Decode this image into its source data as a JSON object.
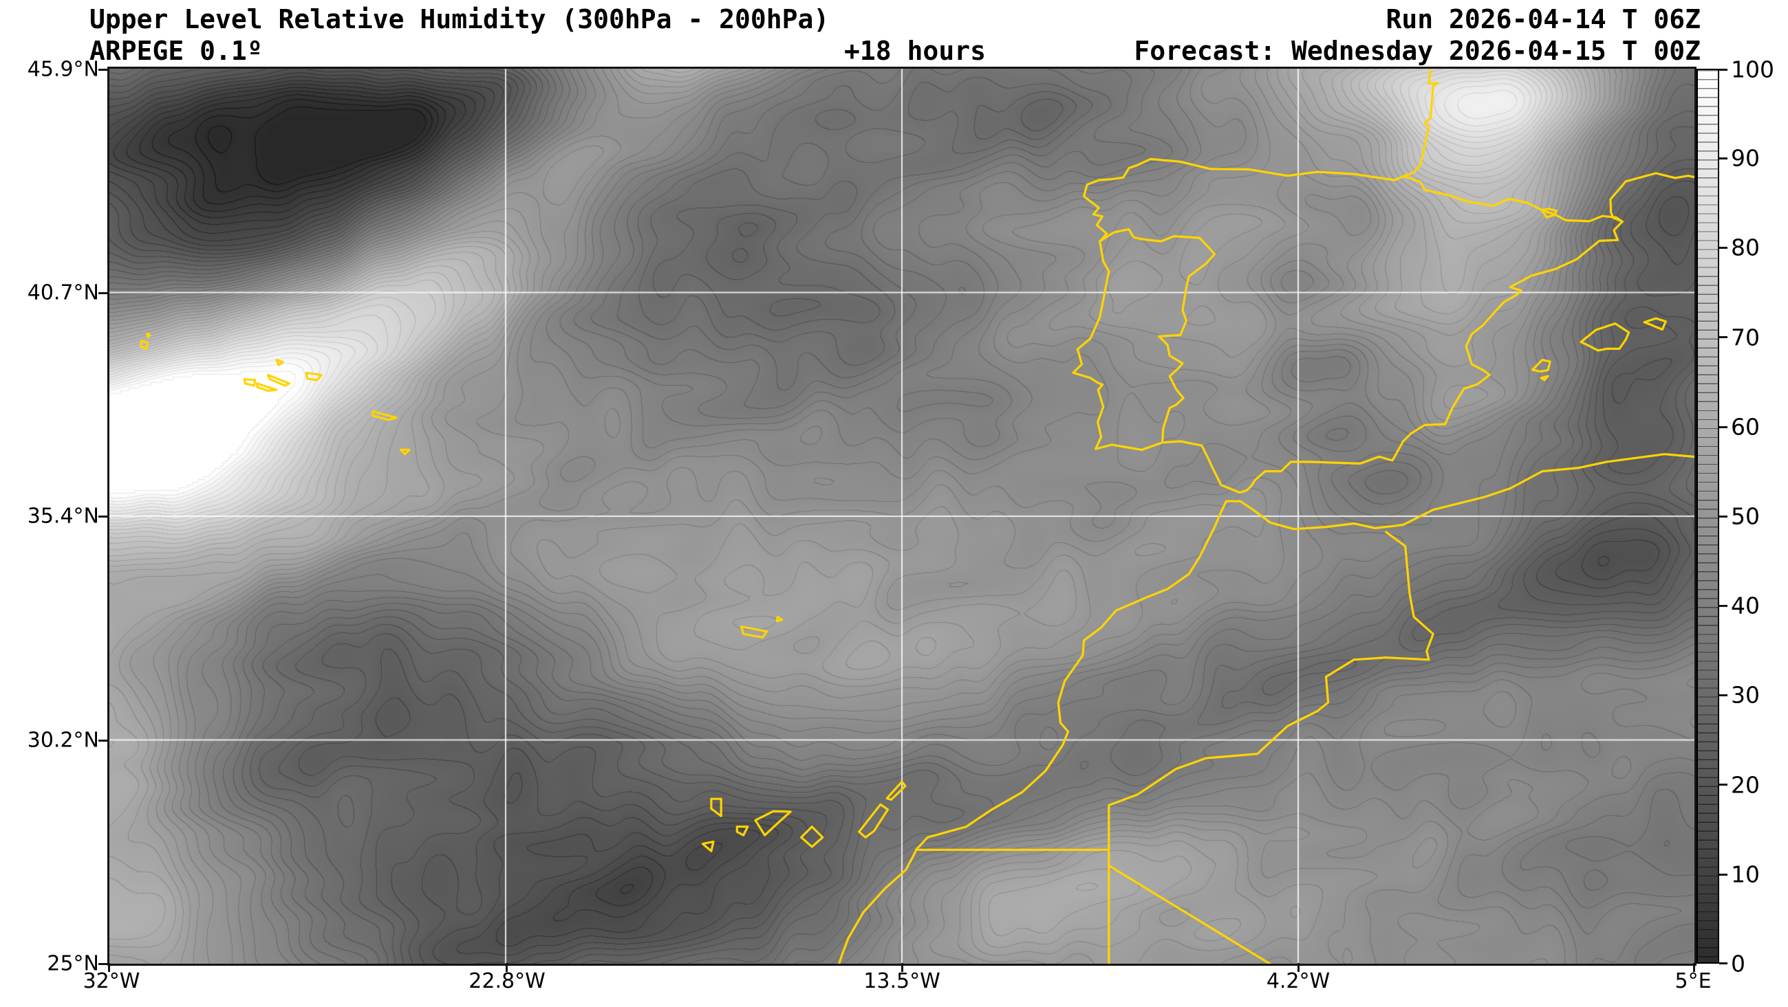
{
  "header": {
    "title": "Upper Level Relative Humidity (300hPa - 200hPa)",
    "model": "ARPEGE 0.1º",
    "lead_time": "+18 hours",
    "run": "Run 2026-04-14 T 06Z",
    "forecast": "Forecast: Wednesday 2026-04-15 T 00Z"
  },
  "axes": {
    "lat": [
      "45.9°N",
      "40.7°N",
      "35.4°N",
      "30.2°N",
      "25°N"
    ],
    "lon": [
      "32°W",
      "22.8°W",
      "13.5°W",
      "4.2°W",
      "5°E"
    ]
  },
  "colorbar": {
    "labels": [
      "100",
      "90",
      "80",
      "70",
      "60",
      "50",
      "40",
      "30",
      "20",
      "10",
      "0"
    ],
    "min": 0,
    "max": 100,
    "top_color": "#ffffff",
    "bottom_color": "#2d2d2d"
  },
  "map_data": {
    "type": "filled-contour grayscale humidity field",
    "extent": {
      "lon_min": -32,
      "lon_max": 5,
      "lat_min": 25,
      "lat_max": 45.9
    },
    "scale_range": [
      0,
      100
    ],
    "coastline_color": "#ffd400",
    "grid_color": "#ffffff"
  }
}
